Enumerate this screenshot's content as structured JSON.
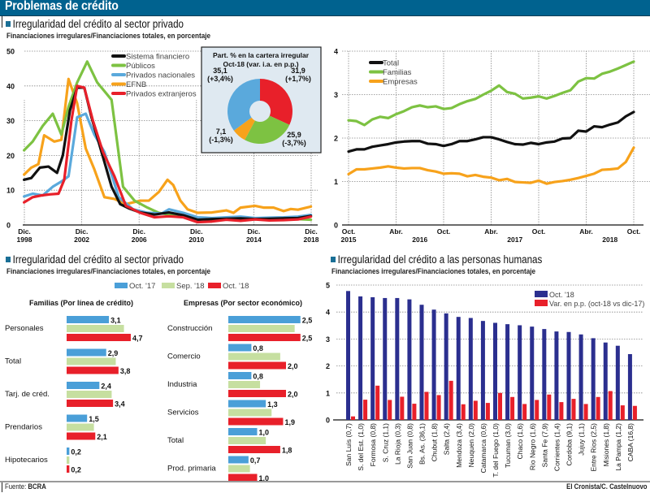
{
  "header": {
    "title": "Problemas de crédito"
  },
  "sections": {
    "top_left": {
      "title": "Irregularidad del crédito al sector privado",
      "subtitle": "Financiaciones irregulares/Financiaciones totales, en porcentaje"
    },
    "bottom_left": {
      "title": "Irregularidad del crédito al sector privado",
      "subtitle": "Financiaciones irregulares/Financiaciones totales, en porcentaje"
    },
    "bottom_right": {
      "title": "Irregularidad del crédito a las personas humanas",
      "subtitle": "Financiaciones irregulares/Financiaciones totales, en porcentaje"
    }
  },
  "footer": {
    "source_label": "Fuente:",
    "source": "BCRA",
    "credit": "El Cronista/C. Castelnuovo"
  },
  "colors": {
    "header": "#00628f",
    "sistema": "#111111",
    "publicos": "#7dc242",
    "privados_nac": "#5aa9dc",
    "efnb": "#f7a21b",
    "privados_ext": "#e8202a",
    "oct17": "#4a9fd8",
    "sep18": "#c6dfa0",
    "oct18": "#e8202a",
    "navy": "#2b2f8f"
  },
  "chart_data": [
    {
      "type": "line",
      "title": "Irregularidad del crédito al sector privado",
      "ylim": [
        0,
        50
      ],
      "yticks": [
        "0",
        "10",
        "20",
        "30",
        "40",
        "50"
      ],
      "xtick_labels": [
        [
          "Dic.",
          "1998"
        ],
        [
          "Dic.",
          "2002"
        ],
        [
          "Dic.",
          "2006"
        ],
        [
          "Dic.",
          "2010"
        ],
        [
          "Dic.",
          "2014"
        ],
        [
          "Dic.",
          "2018"
        ]
      ],
      "x_range": [
        1998.92,
        2018.92
      ],
      "legend_position": "top-center",
      "series": [
        {
          "name": "Sistema financiero",
          "color_key": "sistema",
          "x": [
            1998.9,
            1999.4,
            2000.0,
            2000.6,
            2001.2,
            2001.6,
            2002.1,
            2002.6,
            2003.1,
            2003.6,
            2004.3,
            2005.0,
            2005.6,
            2006.2,
            2007.0,
            2008.0,
            2009.0,
            2010.0,
            2011.0,
            2012.0,
            2013.0,
            2014.0,
            2015.0,
            2016.0,
            2017.0,
            2018.0,
            2018.9
          ],
          "y": [
            13,
            13.5,
            16.5,
            16.8,
            15,
            20,
            33,
            39.5,
            39.5,
            31,
            21,
            11,
            6,
            4.8,
            3.6,
            3.0,
            3.6,
            2.8,
            1.5,
            1.7,
            1.8,
            1.9,
            1.7,
            1.8,
            1.9,
            2.0,
            2.6
          ]
        },
        {
          "name": "Públicos",
          "color_key": "publicos",
          "x": [
            1998.9,
            1999.5,
            2000.2,
            2000.9,
            2001.5,
            2002.0,
            2002.6,
            2003.3,
            2004.0,
            2005.0,
            2005.8,
            2006.6,
            2007.5,
            2008.3,
            2009.0,
            2010.0,
            2011.0,
            2012.0,
            2013.0,
            2014.0,
            2015.0,
            2016.0,
            2017.0,
            2018.0,
            2018.9
          ],
          "y": [
            21.5,
            24,
            28.5,
            32,
            26,
            34,
            41,
            47,
            41,
            36,
            11,
            7,
            5,
            3.5,
            3,
            2.5,
            1.8,
            1.6,
            1.6,
            1.8,
            1.7,
            1.6,
            1.5,
            1.7,
            1.5
          ]
        },
        {
          "name": "Privados nacionales",
          "color_key": "privados_nac",
          "x": [
            1998.9,
            1999.5,
            2000.2,
            2000.9,
            2001.5,
            2002.0,
            2002.6,
            2003.2,
            2003.8,
            2004.5,
            2005.5,
            2006.5,
            2007.5,
            2008.5,
            2009.0,
            2010.0,
            2011.0,
            2012.0,
            2013.0,
            2014.0,
            2015.0,
            2016.0,
            2017.0,
            2018.0,
            2018.9
          ],
          "y": [
            8.2,
            9,
            8.5,
            11,
            12.5,
            14,
            31,
            32,
            26,
            21,
            8,
            4.5,
            3.5,
            3.3,
            4.5,
            3.5,
            2.2,
            2.0,
            2.2,
            2.4,
            2.0,
            2.1,
            2.2,
            2.4,
            2.9
          ]
        },
        {
          "name": "EFNB",
          "color_key": "efnb",
          "x": [
            1998.9,
            1999.4,
            1999.9,
            2000.3,
            2001.0,
            2001.5,
            2002.0,
            2002.6,
            2003.2,
            2003.8,
            2004.5,
            2005.2,
            2006.0,
            2007.0,
            2007.6,
            2008.3,
            2008.9,
            2009.3,
            2009.8,
            2010.3,
            2011.0,
            2012.0,
            2013.0,
            2013.5,
            2014.0,
            2015.0,
            2015.6,
            2016.3,
            2017.0,
            2017.5,
            2018.0,
            2018.9
          ],
          "y": [
            14.5,
            16.5,
            17.5,
            25.8,
            24,
            24.5,
            42,
            35,
            22,
            16,
            8,
            7.5,
            6,
            7,
            7,
            9.5,
            13,
            11.5,
            7,
            4.5,
            3.5,
            3.6,
            4.2,
            3.5,
            5,
            5.5,
            5,
            5,
            4,
            4.6,
            4.4,
            5.3
          ]
        },
        {
          "name": "Privados extranjeros",
          "color_key": "privados_ext",
          "x": [
            1998.9,
            1999.5,
            2000.1,
            2000.7,
            2001.3,
            2001.7,
            2002.2,
            2002.6,
            2003.1,
            2003.7,
            2004.4,
            2005.2,
            2006.0,
            2007.0,
            2008.0,
            2009.0,
            2010.0,
            2011.0,
            2012.0,
            2013.0,
            2014.0,
            2015.0,
            2016.0,
            2017.0,
            2018.0,
            2018.9
          ],
          "y": [
            6.5,
            8,
            8.5,
            8.8,
            9,
            13,
            30,
            40,
            39.5,
            30,
            21,
            14,
            5.5,
            3.5,
            2.2,
            2.5,
            2.2,
            0.8,
            1.0,
            1.5,
            1.2,
            1.6,
            1.3,
            1.4,
            1.6,
            2.4
          ]
        }
      ],
      "inset_pie": {
        "type": "pie",
        "title_line1": "Part. % en la cartera irregular",
        "title_line2": "Oct-18 (var. i.a. en p.p.)",
        "slices": [
          {
            "value": 31.9,
            "label": "31,9",
            "change": "(+1,7%)",
            "color_key": "privados_ext"
          },
          {
            "value": 25.9,
            "label": "25,9",
            "change": "(-3,7%)",
            "color_key": "publicos"
          },
          {
            "value": 7.1,
            "label": "7,1",
            "change": "(-1,3%)",
            "color_key": "efnb"
          },
          {
            "value": 35.1,
            "label": "35,1",
            "change": "(+3,4%)",
            "color_key": "privados_nac"
          }
        ]
      }
    },
    {
      "type": "line",
      "title": "",
      "ylim": [
        0,
        4
      ],
      "yticks": [
        "0",
        "1",
        "2",
        "3",
        "4"
      ],
      "xtick_labels": [
        "Oct.",
        "Abr.",
        "Oct.",
        "Abr.",
        "Oct.",
        "Abr.",
        "Oct."
      ],
      "year_labels": [
        "2015",
        "2016",
        "2017",
        "2018"
      ],
      "months_count": 37,
      "legend_position": "top-left",
      "series": [
        {
          "name": "Total",
          "color_key": "sistema",
          "values": [
            1.69,
            1.74,
            1.74,
            1.8,
            1.83,
            1.86,
            1.9,
            1.92,
            1.93,
            1.93,
            1.87,
            1.86,
            1.82,
            1.86,
            1.93,
            1.93,
            1.97,
            2.02,
            2.02,
            1.97,
            1.91,
            1.86,
            1.85,
            1.89,
            1.86,
            1.9,
            1.92,
            1.99,
            2.0,
            2.17,
            2.15,
            2.27,
            2.25,
            2.31,
            2.36,
            2.5,
            2.6
          ]
        },
        {
          "name": "Familias",
          "color_key": "publicos",
          "values": [
            2.41,
            2.39,
            2.3,
            2.43,
            2.49,
            2.46,
            2.55,
            2.62,
            2.71,
            2.75,
            2.71,
            2.73,
            2.67,
            2.69,
            2.78,
            2.85,
            2.9,
            3.0,
            3.09,
            3.21,
            3.06,
            3.02,
            2.91,
            2.93,
            2.96,
            2.91,
            2.97,
            3.04,
            3.1,
            3.3,
            3.38,
            3.37,
            3.48,
            3.53,
            3.6,
            3.68,
            3.76
          ]
        },
        {
          "name": "Empresas",
          "color_key": "efnb",
          "values": [
            1.17,
            1.28,
            1.28,
            1.3,
            1.32,
            1.35,
            1.32,
            1.3,
            1.31,
            1.31,
            1.26,
            1.23,
            1.18,
            1.19,
            1.18,
            1.12,
            1.15,
            1.11,
            1.09,
            1.03,
            1.06,
            0.99,
            0.98,
            0.97,
            1.02,
            0.95,
            0.99,
            1.01,
            1.04,
            1.08,
            1.13,
            1.18,
            1.27,
            1.28,
            1.3,
            1.45,
            1.78
          ]
        }
      ]
    },
    {
      "type": "bar",
      "title": "Familias (Por línea de crédito)",
      "orientation": "horizontal",
      "legend": [
        "Oct. '17",
        "Sep. '18",
        "Oct. '18"
      ],
      "legend_position": "top-center",
      "categories": [
        "Personales",
        "Total",
        "Tarj. de créd.",
        "Prendarios",
        "Hipotecarios"
      ],
      "series": [
        {
          "name": "Oct. '17",
          "color_key": "oct17",
          "values": [
            3.1,
            2.9,
            2.4,
            1.5,
            0.2
          ],
          "labels": [
            "3,1",
            "2,9",
            "2,4",
            "1,5",
            "0,2"
          ]
        },
        {
          "name": "Sep. '18",
          "color_key": "sep18",
          "values": [
            4.2,
            3.6,
            3.3,
            2.0,
            0.2
          ],
          "labels": [
            "",
            "",
            "",
            "",
            ""
          ]
        },
        {
          "name": "Oct. '18",
          "color_key": "oct18",
          "values": [
            4.7,
            3.8,
            3.4,
            2.1,
            0.2
          ],
          "labels": [
            "4,7",
            "3,8",
            "3,4",
            "2,1",
            "0,2"
          ]
        }
      ],
      "xlim": [
        0,
        5
      ]
    },
    {
      "type": "bar",
      "title": "Empresas (Por sector económico)",
      "orientation": "horizontal",
      "categories": [
        "Construcción",
        "Comercio",
        "Industria",
        "Servicios",
        "Total",
        "Prod. primaria"
      ],
      "series": [
        {
          "name": "Oct. '17",
          "color_key": "oct17",
          "values": [
            2.5,
            0.8,
            0.8,
            1.3,
            1.0,
            0.7
          ],
          "labels": [
            "2,5",
            "0,8",
            "0,8",
            "1,3",
            "1,0",
            "0,7"
          ]
        },
        {
          "name": "Sep. '18",
          "color_key": "sep18",
          "values": [
            2.3,
            1.8,
            1.1,
            1.5,
            1.3,
            0.75
          ],
          "labels": [
            "",
            "",
            "",
            "",
            "",
            ""
          ]
        },
        {
          "name": "Oct. '18",
          "color_key": "oct18",
          "values": [
            2.5,
            2.0,
            2.0,
            1.9,
            1.8,
            1.0
          ],
          "labels": [
            "2,5",
            "2,0",
            "2,0",
            "1,9",
            "1,8",
            "1,0"
          ]
        }
      ],
      "xlim": [
        0,
        2.5
      ]
    },
    {
      "type": "bar",
      "title": "Irregularidad del crédito a las personas humanas",
      "orientation": "vertical",
      "ylim": [
        0,
        5
      ],
      "yticks": [
        "0",
        "1",
        "2",
        "3",
        "4",
        "5"
      ],
      "legend_position": "top-right",
      "categories": [
        "San Luis (0,7)",
        "S. del Est. (1,0)",
        "Formosa (0,8)",
        "S. Cruz (1,1)",
        "La Rioja (0,3)",
        "San Juan (0,8)",
        "Bs. As. (36,1)",
        "Chubut (1,8)",
        "Salta (2,4)",
        "Mendoza (3,4)",
        "Neuquen (2,0)",
        "Catamarca (0,6)",
        "T. del Fuego (1,0)",
        "Tucuman (3,0)",
        "Chaco (1,6)",
        "Rio Negro (1,6)",
        "Santa Fe (7,9)",
        "Corrientes (1,4)",
        "Cordoba (9,1)",
        "Jujuy (1,1)",
        "Entre Rios (2,5)",
        "Misiones (1,8)",
        "La Pampa (1,2)",
        "CABA (16,8)"
      ],
      "series": [
        {
          "name": "Oct. '18",
          "color_key": "navy",
          "values": [
            4.78,
            4.58,
            4.55,
            4.52,
            4.52,
            4.47,
            4.27,
            4.09,
            3.95,
            3.82,
            3.78,
            3.67,
            3.6,
            3.55,
            3.51,
            3.46,
            3.37,
            3.28,
            3.26,
            3.17,
            3.03,
            2.87,
            2.75,
            2.44
          ]
        },
        {
          "name": "Var. en p.p. (oct-18 vs dic-17)",
          "color_key": "oct18",
          "values": [
            0.13,
            0.75,
            1.27,
            0.74,
            0.86,
            0.6,
            1.04,
            0.92,
            1.45,
            0.58,
            0.71,
            0.63,
            1.0,
            0.85,
            0.59,
            0.74,
            0.94,
            0.66,
            0.78,
            0.59,
            0.85,
            1.07,
            0.54,
            0.52
          ]
        }
      ]
    }
  ]
}
